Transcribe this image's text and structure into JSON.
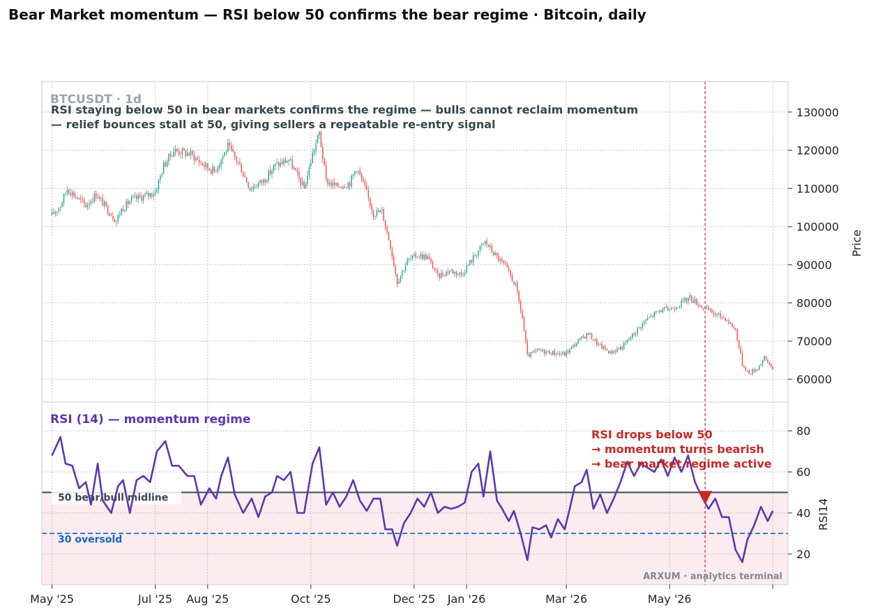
{
  "title": "Bear Market momentum — RSI below 50 confirms the bear regime  ·  Bitcoin, daily",
  "chart_data": [
    {
      "type": "candlestick",
      "panel": "price",
      "symbol_label": "BTCUSDT · 1d",
      "annotation_line1": "RSI staying below 50 in bear markets confirms the regime — bulls cannot reclaim momentum",
      "annotation_line2": "— relief bounces stall at 50, giving sellers a repeatable re-entry signal",
      "ylabel": "Price",
      "ylim": [
        54000,
        138000
      ],
      "yticks": [
        60000,
        70000,
        80000,
        90000,
        100000,
        110000,
        120000,
        130000
      ],
      "ytick_labels": [
        "60000",
        "70000",
        "80000",
        "90000",
        "100000",
        "110000",
        "120000",
        "130000"
      ],
      "grid": true,
      "up_color": "#26a69a",
      "down_color": "#ef5350",
      "close_path": [
        [
          "2025-05-01",
          103000
        ],
        [
          "2025-05-06",
          105500
        ],
        [
          "2025-05-10",
          110000
        ],
        [
          "2025-05-16",
          107500
        ],
        [
          "2025-05-21",
          105500
        ],
        [
          "2025-05-27",
          108500
        ],
        [
          "2025-06-02",
          105000
        ],
        [
          "2025-06-08",
          101500
        ],
        [
          "2025-06-11",
          104500
        ],
        [
          "2025-06-17",
          107000
        ],
        [
          "2025-06-25",
          108000
        ],
        [
          "2025-07-01",
          109000
        ],
        [
          "2025-07-06",
          116000
        ],
        [
          "2025-07-12",
          120000
        ],
        [
          "2025-07-22",
          119000
        ],
        [
          "2025-07-30",
          116000
        ],
        [
          "2025-08-05",
          114500
        ],
        [
          "2025-08-13",
          121000
        ],
        [
          "2025-08-20",
          116000
        ],
        [
          "2025-08-26",
          110000
        ],
        [
          "2025-09-03",
          112000
        ],
        [
          "2025-09-10",
          116000
        ],
        [
          "2025-09-18",
          117500
        ],
        [
          "2025-09-27",
          110000
        ],
        [
          "2025-10-02",
          119000
        ],
        [
          "2025-10-06",
          124500
        ],
        [
          "2025-10-10",
          112000
        ],
        [
          "2025-10-16",
          110500
        ],
        [
          "2025-10-24",
          111500
        ],
        [
          "2025-10-28",
          115500
        ],
        [
          "2025-11-02",
          110000
        ],
        [
          "2025-11-07",
          103500
        ],
        [
          "2025-11-12",
          104000
        ],
        [
          "2025-11-17",
          95000
        ],
        [
          "2025-11-21",
          85500
        ],
        [
          "2025-11-27",
          91000
        ],
        [
          "2025-12-03",
          92500
        ],
        [
          "2025-12-09",
          92000
        ],
        [
          "2025-12-15",
          87000
        ],
        [
          "2025-12-22",
          88500
        ],
        [
          "2025-12-29",
          87500
        ],
        [
          "2026-01-06",
          92500
        ],
        [
          "2026-01-12",
          96000
        ],
        [
          "2026-01-18",
          92500
        ],
        [
          "2026-01-24",
          89500
        ],
        [
          "2026-01-30",
          84500
        ],
        [
          "2026-02-03",
          76000
        ],
        [
          "2026-02-06",
          66000
        ],
        [
          "2026-02-12",
          67500
        ],
        [
          "2026-02-20",
          67000
        ],
        [
          "2026-02-28",
          66500
        ],
        [
          "2026-03-08",
          70000
        ],
        [
          "2026-03-14",
          72000
        ],
        [
          "2026-03-20",
          69000
        ],
        [
          "2026-03-27",
          67000
        ],
        [
          "2026-04-03",
          68500
        ],
        [
          "2026-04-10",
          72000
        ],
        [
          "2026-04-17",
          75500
        ],
        [
          "2026-04-25",
          78000
        ],
        [
          "2026-05-02",
          78500
        ],
        [
          "2026-05-08",
          80000
        ],
        [
          "2026-05-13",
          81500
        ],
        [
          "2026-05-20",
          79000
        ],
        [
          "2026-05-28",
          77000
        ],
        [
          "2026-06-03",
          76000
        ],
        [
          "2026-06-09",
          73000
        ],
        [
          "2026-06-13",
          64000
        ],
        [
          "2026-06-17",
          61500
        ],
        [
          "2026-06-22",
          63000
        ],
        [
          "2026-06-26",
          65500
        ],
        [
          "2026-07-01",
          63000
        ]
      ]
    },
    {
      "type": "line",
      "panel": "rsi",
      "title": "RSI (14) — momentum regime",
      "ylabel": "RSI14",
      "ylim": [
        5,
        94
      ],
      "yticks": [
        20,
        40,
        60,
        80
      ],
      "ytick_labels": [
        "20",
        "40",
        "60",
        "80"
      ],
      "grid": true,
      "series": [
        {
          "name": "",
          "color": "#5e35b1",
          "points": [
            [
              "2025-05-01",
              68
            ],
            [
              "2025-05-06",
              77
            ],
            [
              "2025-05-09",
              64
            ],
            [
              "2025-05-13",
              63
            ],
            [
              "2025-05-17",
              52
            ],
            [
              "2025-05-21",
              55
            ],
            [
              "2025-05-24",
              44
            ],
            [
              "2025-05-28",
              64
            ],
            [
              "2025-05-31",
              46
            ],
            [
              "2025-06-05",
              40
            ],
            [
              "2025-06-09",
              53
            ],
            [
              "2025-06-12",
              56
            ],
            [
              "2025-06-16",
              40
            ],
            [
              "2025-06-20",
              56
            ],
            [
              "2025-06-24",
              58
            ],
            [
              "2025-06-28",
              55
            ],
            [
              "2025-07-02",
              70
            ],
            [
              "2025-07-07",
              75
            ],
            [
              "2025-07-11",
              63
            ],
            [
              "2025-07-15",
              63
            ],
            [
              "2025-07-20",
              58
            ],
            [
              "2025-07-24",
              58
            ],
            [
              "2025-07-28",
              44
            ],
            [
              "2025-08-02",
              52
            ],
            [
              "2025-08-06",
              47
            ],
            [
              "2025-08-09",
              58
            ],
            [
              "2025-08-13",
              67
            ],
            [
              "2025-08-17",
              49
            ],
            [
              "2025-08-22",
              40
            ],
            [
              "2025-08-27",
              47
            ],
            [
              "2025-08-31",
              38
            ],
            [
              "2025-09-04",
              48
            ],
            [
              "2025-09-08",
              50
            ],
            [
              "2025-09-11",
              58
            ],
            [
              "2025-09-15",
              56
            ],
            [
              "2025-09-19",
              60
            ],
            [
              "2025-09-23",
              40
            ],
            [
              "2025-09-27",
              40
            ],
            [
              "2025-10-02",
              64
            ],
            [
              "2025-10-06",
              72
            ],
            [
              "2025-10-10",
              44
            ],
            [
              "2025-10-14",
              50
            ],
            [
              "2025-10-18",
              43
            ],
            [
              "2025-10-22",
              48
            ],
            [
              "2025-10-26",
              56
            ],
            [
              "2025-10-30",
              46
            ],
            [
              "2025-11-03",
              41
            ],
            [
              "2025-11-07",
              47
            ],
            [
              "2025-11-11",
              47
            ],
            [
              "2025-11-14",
              32
            ],
            [
              "2025-11-18",
              32
            ],
            [
              "2025-11-21",
              24
            ],
            [
              "2025-11-25",
              35
            ],
            [
              "2025-11-29",
              40
            ],
            [
              "2025-12-03",
              47
            ],
            [
              "2025-12-07",
              43
            ],
            [
              "2025-12-11",
              50
            ],
            [
              "2025-12-15",
              40
            ],
            [
              "2025-12-19",
              43
            ],
            [
              "2025-12-23",
              42
            ],
            [
              "2025-12-27",
              43
            ],
            [
              "2025-12-31",
              45
            ],
            [
              "2026-01-04",
              60
            ],
            [
              "2026-01-08",
              64
            ],
            [
              "2026-01-11",
              48
            ],
            [
              "2026-01-15",
              70
            ],
            [
              "2026-01-19",
              46
            ],
            [
              "2026-01-22",
              42
            ],
            [
              "2026-01-26",
              36
            ],
            [
              "2026-01-29",
              41
            ],
            [
              "2026-02-02",
              30
            ],
            [
              "2026-02-06",
              17
            ],
            [
              "2026-02-09",
              33
            ],
            [
              "2026-02-13",
              32
            ],
            [
              "2026-02-17",
              34
            ],
            [
              "2026-02-20",
              28
            ],
            [
              "2026-02-24",
              37
            ],
            [
              "2026-02-28",
              32
            ],
            [
              "2026-03-03",
              42
            ],
            [
              "2026-03-06",
              53
            ],
            [
              "2026-03-10",
              55
            ],
            [
              "2026-03-13",
              61
            ],
            [
              "2026-03-17",
              42
            ],
            [
              "2026-03-21",
              49
            ],
            [
              "2026-03-25",
              40
            ],
            [
              "2026-03-29",
              47
            ],
            [
              "2026-04-02",
              55
            ],
            [
              "2026-04-06",
              65
            ],
            [
              "2026-04-10",
              58
            ],
            [
              "2026-04-14",
              64
            ],
            [
              "2026-04-18",
              62
            ],
            [
              "2026-04-22",
              60
            ],
            [
              "2026-04-26",
              66
            ],
            [
              "2026-04-30",
              58
            ],
            [
              "2026-05-04",
              67
            ],
            [
              "2026-05-08",
              60
            ],
            [
              "2026-05-12",
              68
            ],
            [
              "2026-05-16",
              55
            ],
            [
              "2026-05-20",
              48
            ],
            [
              "2026-05-24",
              42
            ],
            [
              "2026-05-28",
              47
            ],
            [
              "2026-06-01",
              38
            ],
            [
              "2026-06-05",
              38
            ],
            [
              "2026-06-09",
              22
            ],
            [
              "2026-06-13",
              16
            ],
            [
              "2026-06-16",
              27
            ],
            [
              "2026-06-20",
              34
            ],
            [
              "2026-06-24",
              43
            ],
            [
              "2026-06-28",
              36
            ],
            [
              "2026-07-01",
              41
            ]
          ]
        }
      ],
      "reference_lines": [
        {
          "value": 50,
          "label": "50  bear/bull midline",
          "color": "#37474f",
          "style": "solid"
        },
        {
          "value": 30,
          "label": "30  oversold",
          "color": "#1565c0",
          "style": "dashed"
        }
      ],
      "shaded_region": {
        "from": 0,
        "to": 50,
        "color": "#fdecef"
      },
      "event": {
        "date": "2026-05-22",
        "marker_value": 48,
        "line_color": "#c62828",
        "annotation": [
          "RSI drops below 50",
          "→ momentum turns bearish",
          "→ bear market regime active"
        ]
      },
      "watermark": "ARXUM · analytics terminal"
    }
  ],
  "x_axis": {
    "start": "2025-04-25",
    "end": "2026-07-10",
    "ticks": [
      "2025-05-01",
      "2025-07-01",
      "2025-08-01",
      "2025-10-01",
      "2025-12-01",
      "2026-01-01",
      "2026-03-01",
      "2026-05-01",
      "2026-07-01"
    ],
    "tick_labels": [
      "May '25",
      "Jul '25",
      "Aug '25",
      "Oct '25",
      "Dec '25",
      "Jan '26",
      "Mar '26",
      "May '26",
      ""
    ]
  }
}
